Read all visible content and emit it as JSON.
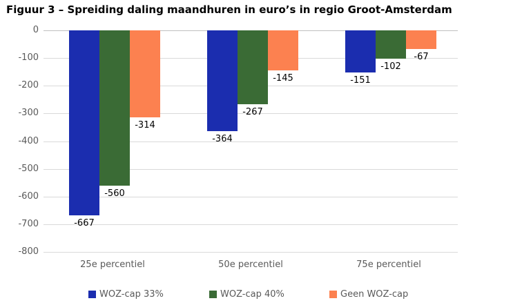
{
  "title": "Figuur 3 – Spreiding daling maandhuren in euro’s in regio Groot-Amsterdam",
  "chart_data": {
    "type": "bar",
    "orientation": "vertical",
    "title": "Figuur 3 – Spreiding daling maandhuren in euro’s in regio Groot-Amsterdam",
    "categories": [
      "25e percentiel",
      "50e percentiel",
      "75e percentiel"
    ],
    "series": [
      {
        "name": "WOZ-cap 33%",
        "color": "#1B2DAF",
        "values": [
          -667,
          -364,
          -151
        ]
      },
      {
        "name": "WOZ-cap 40%",
        "color": "#3A6B35",
        "values": [
          -560,
          -267,
          -102
        ]
      },
      {
        "name": "Geen WOZ-cap",
        "color": "#FC8150",
        "values": [
          -314,
          -145,
          -67
        ]
      }
    ],
    "ylim": [
      -800,
      0
    ],
    "yticks": [
      0,
      -100,
      -200,
      -300,
      -400,
      -500,
      -600,
      -700,
      -800
    ],
    "xlabel": "",
    "ylabel": "",
    "grid": true,
    "data_labels": true,
    "legend_position": "bottom",
    "gridline_color": "#D9D9D9",
    "zero_line_color": "#BFBFBF",
    "axis_text_color": "#595959",
    "data_label_color": "#000000"
  }
}
